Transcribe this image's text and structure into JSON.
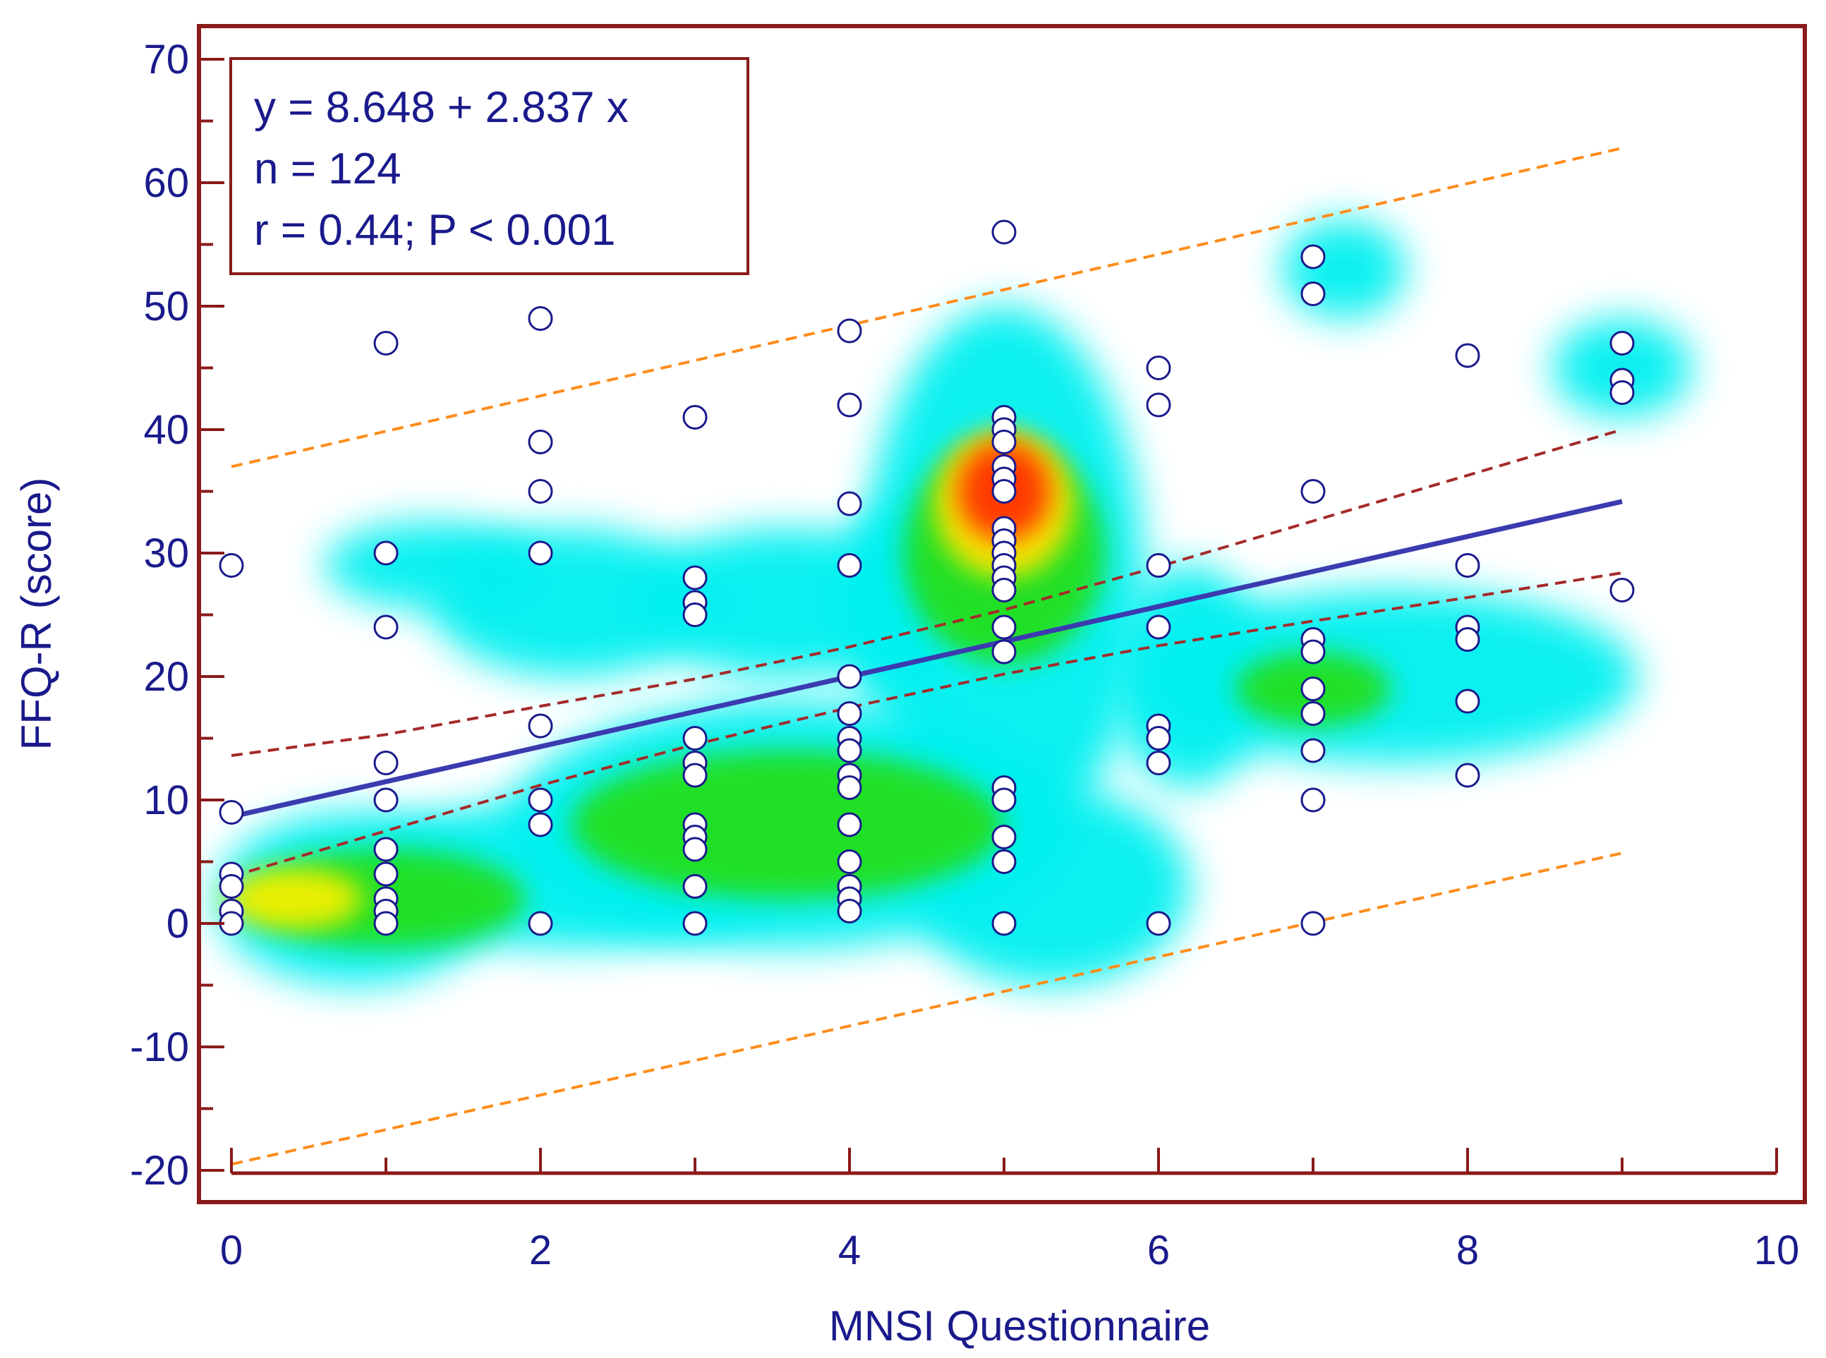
{
  "chart_data": {
    "type": "scatter",
    "xlabel": "MNSI Questionnaire",
    "ylabel": "FFQ-R (score)",
    "xlim": [
      0,
      10
    ],
    "ylim": [
      -20,
      70
    ],
    "x_ticks": [
      0,
      2,
      4,
      6,
      8,
      10
    ],
    "y_ticks": [
      -20,
      -10,
      0,
      10,
      20,
      30,
      40,
      50,
      60,
      70
    ],
    "annotation": {
      "equation": "y = 8.648 + 2.837 x",
      "n": "n = 124",
      "r": "r = 0.44; P < 0.001"
    },
    "points": [
      [
        0,
        29
      ],
      [
        0,
        9
      ],
      [
        0,
        4
      ],
      [
        0,
        3
      ],
      [
        0,
        1
      ],
      [
        0,
        0
      ],
      [
        1,
        47
      ],
      [
        1,
        30
      ],
      [
        1,
        24
      ],
      [
        1,
        13
      ],
      [
        1,
        10
      ],
      [
        1,
        6
      ],
      [
        1,
        4
      ],
      [
        1,
        2
      ],
      [
        1,
        1
      ],
      [
        1,
        0
      ],
      [
        2,
        49
      ],
      [
        2,
        39
      ],
      [
        2,
        35
      ],
      [
        2,
        30
      ],
      [
        2,
        16
      ],
      [
        2,
        10
      ],
      [
        2,
        8
      ],
      [
        2,
        0
      ],
      [
        3,
        41
      ],
      [
        3,
        28
      ],
      [
        3,
        26
      ],
      [
        3,
        25
      ],
      [
        3,
        15
      ],
      [
        3,
        13
      ],
      [
        3,
        12
      ],
      [
        3,
        8
      ],
      [
        3,
        7
      ],
      [
        3,
        6
      ],
      [
        3,
        3
      ],
      [
        3,
        0
      ],
      [
        4,
        48
      ],
      [
        4,
        42
      ],
      [
        4,
        34
      ],
      [
        4,
        29
      ],
      [
        4,
        20
      ],
      [
        4,
        17
      ],
      [
        4,
        15
      ],
      [
        4,
        14
      ],
      [
        4,
        12
      ],
      [
        4,
        11
      ],
      [
        4,
        8
      ],
      [
        4,
        5
      ],
      [
        4,
        3
      ],
      [
        4,
        2
      ],
      [
        4,
        1
      ],
      [
        5,
        56
      ],
      [
        5,
        41
      ],
      [
        5,
        40
      ],
      [
        5,
        39
      ],
      [
        5,
        37
      ],
      [
        5,
        36
      ],
      [
        5,
        35
      ],
      [
        5,
        32
      ],
      [
        5,
        31
      ],
      [
        5,
        30
      ],
      [
        5,
        29
      ],
      [
        5,
        28
      ],
      [
        5,
        27
      ],
      [
        5,
        24
      ],
      [
        5,
        22
      ],
      [
        5,
        11
      ],
      [
        5,
        10
      ],
      [
        5,
        7
      ],
      [
        5,
        5
      ],
      [
        5,
        0
      ],
      [
        6,
        45
      ],
      [
        6,
        42
      ],
      [
        6,
        29
      ],
      [
        6,
        24
      ],
      [
        6,
        16
      ],
      [
        6,
        15
      ],
      [
        6,
        13
      ],
      [
        6,
        0
      ],
      [
        7,
        54
      ],
      [
        7,
        51
      ],
      [
        7,
        35
      ],
      [
        7,
        23
      ],
      [
        7,
        22
      ],
      [
        7,
        19
      ],
      [
        7,
        17
      ],
      [
        7,
        14
      ],
      [
        7,
        10
      ],
      [
        7,
        0
      ],
      [
        8,
        46
      ],
      [
        8,
        29
      ],
      [
        8,
        24
      ],
      [
        8,
        23
      ],
      [
        8,
        18
      ],
      [
        8,
        12
      ],
      [
        9,
        47
      ],
      [
        9,
        44
      ],
      [
        9,
        43
      ],
      [
        9,
        27
      ]
    ],
    "regression": {
      "intercept": 8.648,
      "slope": 2.837,
      "x_range": [
        0,
        9
      ]
    },
    "confidence_band": {
      "upper": [
        [
          0,
          13.6
        ],
        [
          1,
          15.3
        ],
        [
          2,
          17.6
        ],
        [
          3,
          19.8
        ],
        [
          4,
          22.4
        ],
        [
          5,
          25.4
        ],
        [
          6,
          28.9
        ],
        [
          7,
          32.6
        ],
        [
          8,
          36.3
        ],
        [
          9,
          40.0
        ]
      ],
      "lower": [
        [
          0,
          3.8
        ],
        [
          1,
          7.5
        ],
        [
          2,
          11.2
        ],
        [
          3,
          14.5
        ],
        [
          4,
          17.5
        ],
        [
          5,
          20.2
        ],
        [
          6,
          22.5
        ],
        [
          7,
          24.5
        ],
        [
          8,
          26.4
        ],
        [
          9,
          28.4
        ]
      ]
    },
    "prediction_band": {
      "upper": [
        [
          0,
          37
        ],
        [
          9,
          62.8
        ]
      ],
      "lower": [
        [
          0,
          -19.5
        ],
        [
          9,
          5.7
        ]
      ]
    },
    "density_blobs": [
      {
        "x": 0.3,
        "y": 2,
        "intensity": "yellow"
      },
      {
        "x": 5,
        "y": 34,
        "intensity": "red"
      },
      {
        "x": 3.5,
        "y": 8,
        "intensity": "green"
      },
      {
        "x": 7,
        "y": 19,
        "intensity": "green"
      },
      {
        "x": 9,
        "y": 45,
        "intensity": "cyan"
      }
    ],
    "colors": {
      "frame": "#8b1a1a",
      "text": "#1a1a8c",
      "regression_line": "#3b3bb0",
      "confidence_band": "#a52a2a",
      "prediction_band": "#ff8c1a",
      "point_stroke": "#1a1a8c",
      "point_fill": "#ffffff"
    }
  }
}
